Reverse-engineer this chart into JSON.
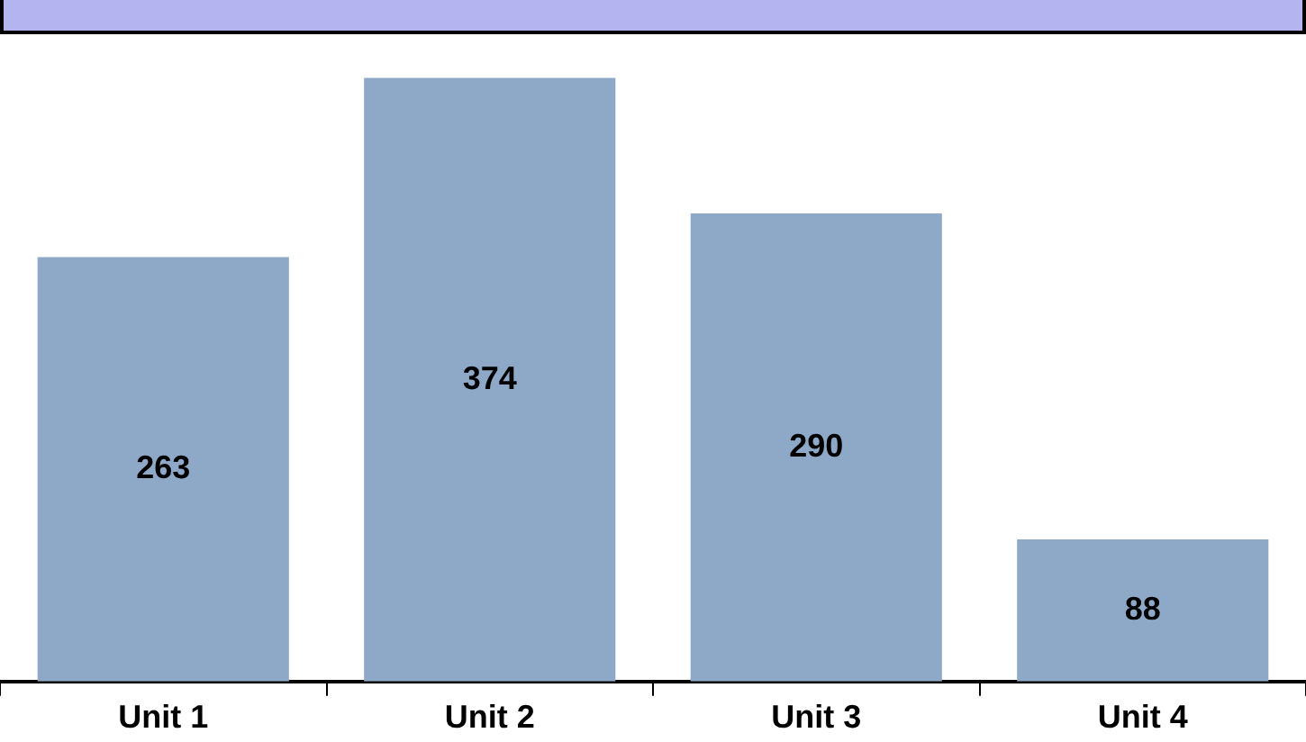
{
  "chart_data": {
    "type": "bar",
    "categories": [
      "Unit 1",
      "Unit 2",
      "Unit 3",
      "Unit 4"
    ],
    "values": [
      263,
      374,
      290,
      88
    ],
    "color": "#8ea9c8",
    "data_labels": true,
    "grid": false,
    "legend": false,
    "tick_labels": "x"
  }
}
